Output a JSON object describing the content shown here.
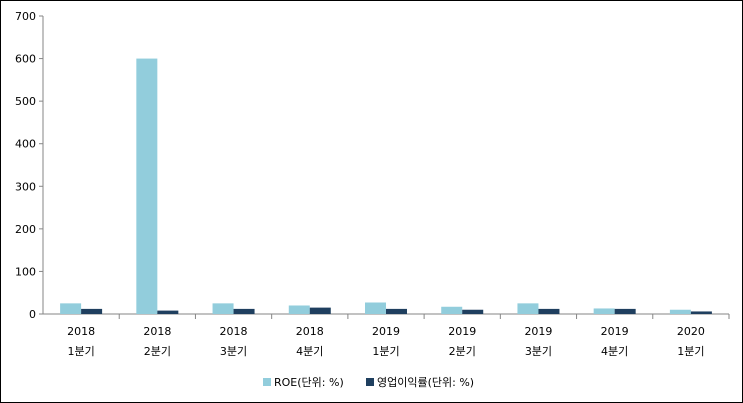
{
  "chart_data": {
    "type": "bar",
    "categories": [
      [
        "2018",
        "1분기"
      ],
      [
        "2018",
        "2분기"
      ],
      [
        "2018",
        "3분기"
      ],
      [
        "2018",
        "4분기"
      ],
      [
        "2019",
        "1분기"
      ],
      [
        "2019",
        "2분기"
      ],
      [
        "2019",
        "3분기"
      ],
      [
        "2019",
        "4분기"
      ],
      [
        "2020",
        "1분기"
      ]
    ],
    "series": [
      {
        "name": "ROE(단위: %)",
        "color": "#92CDDC",
        "values": [
          25,
          600,
          25,
          20,
          27,
          17,
          25,
          13,
          10
        ]
      },
      {
        "name": "영업이익률(단위: %)",
        "color": "#1F3F5F",
        "values": [
          12,
          8,
          12,
          15,
          12,
          10,
          12,
          12,
          6
        ]
      }
    ],
    "yticks": [
      0,
      100,
      200,
      300,
      400,
      500,
      600,
      700
    ],
    "ylim": [
      0,
      700
    ],
    "grid": false,
    "legend_position": "bottom"
  }
}
